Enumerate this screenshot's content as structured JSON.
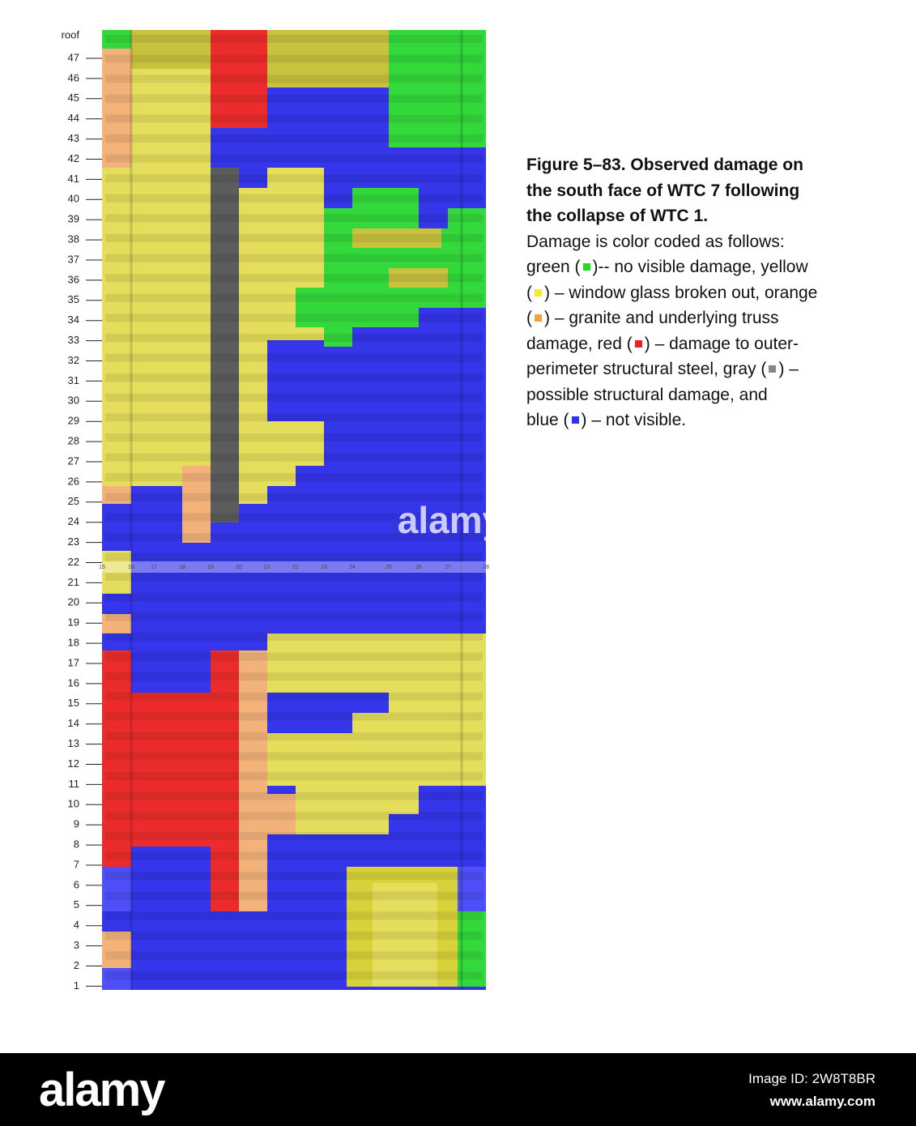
{
  "floors": [
    "roof",
    "47",
    "46",
    "45",
    "44",
    "43",
    "42",
    "41",
    "40",
    "39",
    "38",
    "37",
    "36",
    "35",
    "34",
    "33",
    "32",
    "31",
    "30",
    "29",
    "28",
    "27",
    "26",
    "25",
    "24",
    "23",
    "22",
    "21",
    "20",
    "19",
    "18",
    "17",
    "16",
    "15",
    "14",
    "13",
    "12",
    "11",
    "10",
    "9",
    "8",
    "7",
    "6",
    "5",
    "4",
    "3",
    "2",
    "1"
  ],
  "columns": [
    "15",
    "16",
    "17",
    "18",
    "19",
    "20",
    "21",
    "22",
    "23",
    "24",
    "25",
    "26",
    "27",
    "28"
  ],
  "watermark": "alamy",
  "caption": {
    "title_lines": [
      "Figure 5–83.  Observed damage on",
      "the south face of WTC 7 following",
      "the collapse of WTC 1."
    ],
    "body": {
      "intro": "Damage is color coded as follows:",
      "green_a": "green (",
      "green_b": ")-- no visible damage, yellow",
      "yellow_a": "(",
      "yellow_b": ") – window glass broken out, orange",
      "orange_a": "(",
      "orange_b": ") – granite and underlying truss",
      "red_a": "damage, red (",
      "red_b": ") – damage to outer-",
      "gray_a": "perimeter structural steel, gray (",
      "gray_b": ") –",
      "possible": "possible structural damage, and",
      "blue_a": "blue (",
      "blue_b": ") – not visible."
    }
  },
  "footer": {
    "logo": "alamy",
    "image_id": "Image ID: 2W8T8BR",
    "site": "www.alamy.com"
  }
}
